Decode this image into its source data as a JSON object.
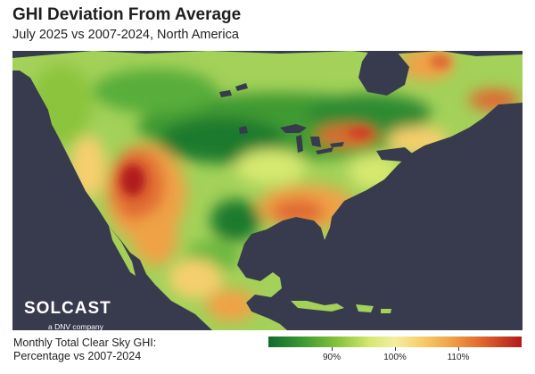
{
  "header": {
    "title": "GHI Deviation From Average",
    "subtitle": "July 2025 vs 2007-2024, North America"
  },
  "logo": {
    "word": "SOLCAST",
    "tagline": "a DNV company"
  },
  "legend": {
    "title_line1": "Monthly Total Clear Sky GHI:",
    "title_line2": "Percentage vs 2007-2024",
    "ticks": [
      {
        "label": "90%",
        "value": 90
      },
      {
        "label": "100%",
        "value": 100
      },
      {
        "label": "110%",
        "value": 110
      }
    ],
    "colors": [
      "#0f6b2d",
      "#8cc43c",
      "#f3efa0",
      "#f0a246",
      "#b11a1a"
    ]
  },
  "colors": {
    "water": "#383a4d",
    "land_base": "#9fcf55"
  }
}
